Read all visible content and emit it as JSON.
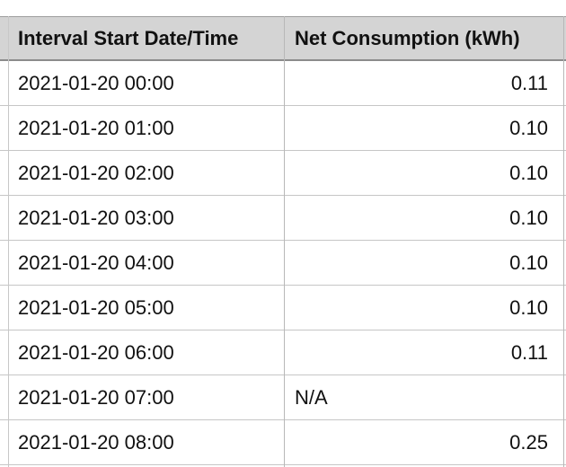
{
  "table": {
    "headers": [
      "Interval Start Date/Time",
      "Net Consumption (kWh)"
    ],
    "rows": [
      {
        "datetime": "2021-01-20 00:00",
        "consumption": "0.11"
      },
      {
        "datetime": "2021-01-20 01:00",
        "consumption": "0.10"
      },
      {
        "datetime": "2021-01-20 02:00",
        "consumption": "0.10"
      },
      {
        "datetime": "2021-01-20 03:00",
        "consumption": "0.10"
      },
      {
        "datetime": "2021-01-20 04:00",
        "consumption": "0.10"
      },
      {
        "datetime": "2021-01-20 05:00",
        "consumption": "0.10"
      },
      {
        "datetime": "2021-01-20 06:00",
        "consumption": "0.11"
      },
      {
        "datetime": "2021-01-20 07:00",
        "consumption": "N/A"
      },
      {
        "datetime": "2021-01-20 08:00",
        "consumption": "0.25"
      }
    ]
  }
}
